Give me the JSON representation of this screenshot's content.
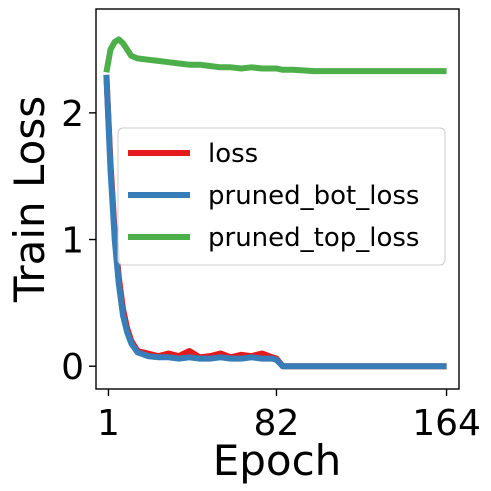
{
  "chart_data": {
    "type": "line",
    "xlabel": "Epoch",
    "ylabel": "Train Loss",
    "xlim": [
      -5,
      170
    ],
    "ylim": [
      -0.18,
      2.82
    ],
    "xticks": [
      1,
      82,
      164
    ],
    "yticks": [
      0,
      1,
      2
    ],
    "grid": false,
    "legend_position": "center-right",
    "series": [
      {
        "name": "loss",
        "color": "#e41a1c",
        "x": [
          0,
          2,
          4,
          6,
          8,
          10,
          12,
          15,
          20,
          25,
          30,
          35,
          40,
          45,
          50,
          55,
          60,
          65,
          70,
          75,
          80,
          82,
          85,
          90,
          100,
          110,
          120,
          130,
          140,
          150,
          164
        ],
        "y": [
          2.3,
          1.6,
          1.05,
          0.7,
          0.45,
          0.3,
          0.2,
          0.12,
          0.1,
          0.08,
          0.1,
          0.08,
          0.12,
          0.07,
          0.08,
          0.1,
          0.07,
          0.09,
          0.08,
          0.1,
          0.07,
          0.06,
          0.0,
          0.0,
          0.0,
          0.0,
          0.0,
          0.0,
          0.0,
          0.0,
          0.0
        ]
      },
      {
        "name": "pruned_bot_loss",
        "color": "#377eb8",
        "x": [
          0,
          2,
          4,
          6,
          8,
          10,
          12,
          15,
          20,
          25,
          30,
          35,
          40,
          45,
          50,
          55,
          60,
          65,
          70,
          75,
          80,
          82,
          85,
          90,
          100,
          110,
          120,
          130,
          140,
          150,
          164
        ],
        "y": [
          2.3,
          1.55,
          1.0,
          0.65,
          0.4,
          0.27,
          0.18,
          0.11,
          0.08,
          0.07,
          0.07,
          0.06,
          0.07,
          0.06,
          0.06,
          0.07,
          0.06,
          0.06,
          0.07,
          0.06,
          0.06,
          0.05,
          0.0,
          0.0,
          0.0,
          0.0,
          0.0,
          0.0,
          0.0,
          0.0,
          0.0
        ]
      },
      {
        "name": "pruned_top_loss",
        "color": "#4daf4a",
        "x": [
          0,
          2,
          4,
          6,
          8,
          10,
          12,
          15,
          20,
          25,
          30,
          35,
          40,
          45,
          50,
          55,
          60,
          65,
          70,
          75,
          80,
          82,
          85,
          90,
          100,
          110,
          120,
          130,
          140,
          150,
          164
        ],
        "y": [
          2.32,
          2.5,
          2.56,
          2.58,
          2.55,
          2.5,
          2.45,
          2.43,
          2.42,
          2.41,
          2.4,
          2.39,
          2.38,
          2.38,
          2.37,
          2.36,
          2.36,
          2.35,
          2.36,
          2.35,
          2.35,
          2.35,
          2.34,
          2.34,
          2.33,
          2.33,
          2.33,
          2.33,
          2.33,
          2.33,
          2.33
        ]
      }
    ]
  }
}
